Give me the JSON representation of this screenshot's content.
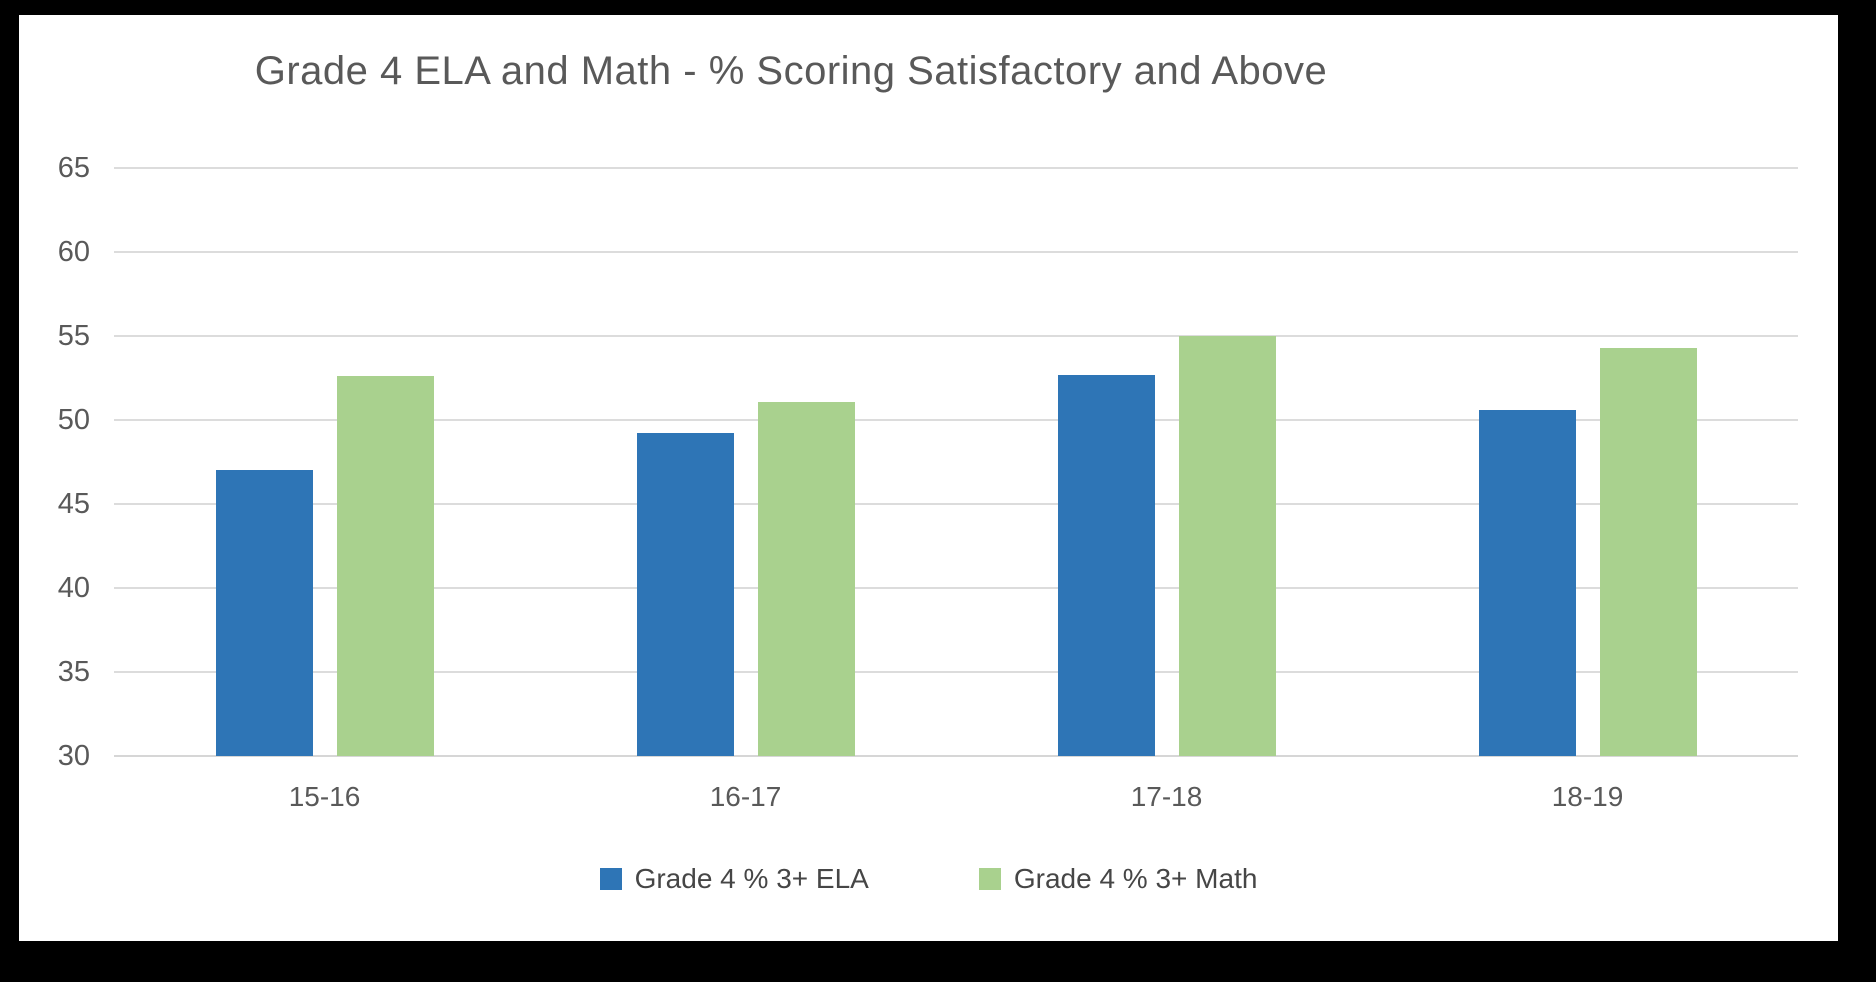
{
  "window": {
    "background_color": "#000000",
    "canvas_color": "#ffffff"
  },
  "chart_data": {
    "type": "bar",
    "title": "Grade 4 ELA and Math - % Scoring Satisfactory and Above",
    "categories": [
      "15-16",
      "16-17",
      "17-18",
      "18-19"
    ],
    "series": [
      {
        "name": "Grade 4 % 3+ ELA",
        "color": "#2E75B6",
        "values": [
          47.0,
          49.2,
          52.7,
          50.6
        ]
      },
      {
        "name": "Grade 4 % 3+ Math",
        "color": "#A9D18E",
        "values": [
          52.6,
          51.1,
          55.0,
          54.3
        ]
      }
    ],
    "xlabel": "",
    "ylabel": "",
    "ylim": [
      30,
      65
    ],
    "yticks": [
      30,
      35,
      40,
      45,
      50,
      55,
      60,
      65
    ],
    "grid": true,
    "gridline_color": "#dcdcdc",
    "tick_label_color": "#595959",
    "title_color": "#595959",
    "legend_position": "bottom"
  }
}
